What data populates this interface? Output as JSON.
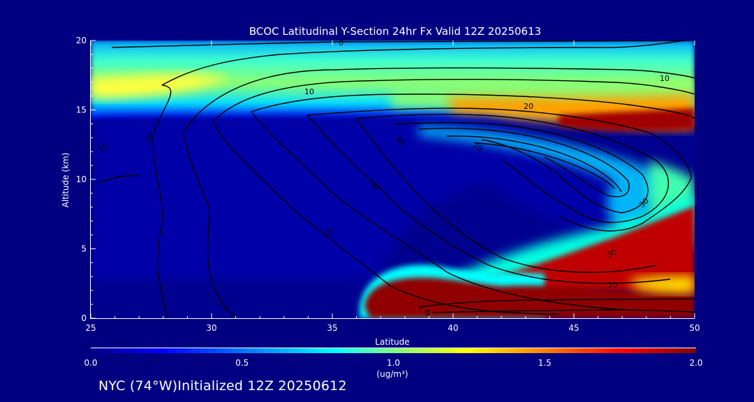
{
  "chart_data": {
    "type": "heatmap",
    "title": "BCOC Latitudinal Y-Section 24hr  Fx Valid 12Z 20250613",
    "xlabel": "Latitude",
    "ylabel": "Altitude (km)",
    "xlim": [
      25,
      50
    ],
    "ylim": [
      0,
      20
    ],
    "x_ticks": [
      "25",
      "30",
      "35",
      "40",
      "45",
      "50"
    ],
    "y_ticks": [
      "0",
      "5",
      "10",
      "15",
      "20"
    ],
    "colorbar": {
      "label": "(ug/m³)",
      "range": [
        0.0,
        2.0
      ],
      "ticks": [
        "0.0",
        "0.5",
        "1.0",
        "1.5",
        "2.0"
      ],
      "colormap": [
        "#00008f",
        "#0000ff",
        "#00a0ff",
        "#00ffff",
        "#80ff80",
        "#ffff00",
        "#ff8000",
        "#ff0000",
        "#800000"
      ]
    },
    "heatmap_regions": [
      {
        "name": "upper layer",
        "lat": [
          25,
          50
        ],
        "alt": [
          15,
          20
        ],
        "value": 0.85
      },
      {
        "name": "upper plume core",
        "lat": [
          41,
          50
        ],
        "alt": [
          13.8,
          16
        ],
        "value": 2.0
      },
      {
        "name": "layer 17km",
        "lat": [
          25,
          31
        ],
        "alt": [
          16.3,
          17.5
        ],
        "value": 1.4
      },
      {
        "name": "boundary-layer plume",
        "lat": [
          36,
          50
        ],
        "alt": [
          0,
          3
        ],
        "value": 2.0
      },
      {
        "name": "rising plume",
        "lat": [
          42,
          50
        ],
        "alt": [
          2,
          7
        ],
        "value": 1.8
      },
      {
        "name": "mid-level edge",
        "lat": [
          46,
          50
        ],
        "alt": [
          6,
          13
        ],
        "value": 0.9
      },
      {
        "name": "background",
        "lat": [
          25,
          50
        ],
        "alt": [
          0,
          14
        ],
        "value": 0.05
      }
    ],
    "contour_labels": [
      "0",
      "10",
      "20",
      "10",
      "10",
      "10",
      "30",
      "30",
      "20",
      "30",
      "0",
      "10",
      "30",
      "30"
    ]
  },
  "footer": {
    "initialized": "NYC (74°W)Initialized 12Z 20250612"
  }
}
